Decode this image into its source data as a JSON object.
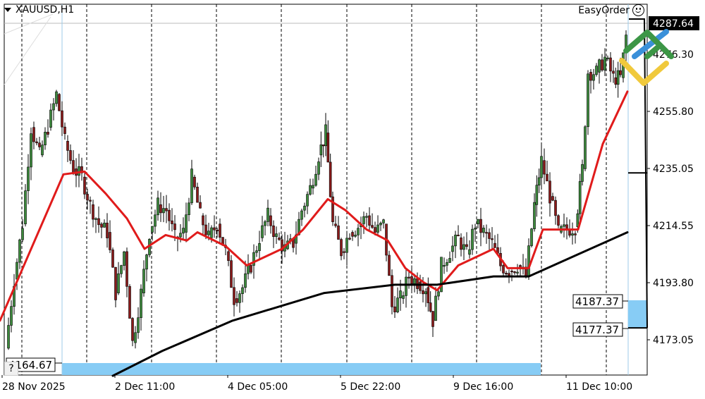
{
  "header": {
    "symbol": "XAUUSD,H1",
    "plugin": "EasyOrder"
  },
  "help_button": "?",
  "price_labels": {
    "current": "4287.64",
    "level_upper": "4187.37",
    "level_lower": "4177.37",
    "level_left": "4164.67"
  },
  "colors": {
    "bull": "#3c8a3c",
    "bear": "#8b1a1a",
    "ma_fast": "#e01b1b",
    "ma_slow": "#000000",
    "zone": "#87ccf5",
    "grid": "#000000"
  },
  "chart_data": {
    "type": "candlestick",
    "title": "XAUUSD,H1",
    "xlabel": "",
    "ylabel": "",
    "x_tick_labels": [
      "28 Nov 2025",
      "2 Dec 11:00",
      "4 Dec 05:00",
      "5 Dec 22:00",
      "9 Dec 16:00",
      "11 Dec 10:00"
    ],
    "y_tick_labels": [
      "4276.30",
      "4255.80",
      "4235.05",
      "4214.55",
      "4193.80",
      "4173.05"
    ],
    "ylim": [
      4160,
      4292
    ],
    "grid": "vertical dashed",
    "current_price": 4287.64,
    "annotations": [
      "4187.37",
      "4177.37",
      "4164.67"
    ],
    "series": [
      {
        "name": "MA fast (red)",
        "points_approx": [
          [
            0,
            4180
          ],
          [
            90,
            4233
          ],
          [
            120,
            4234
          ],
          [
            150,
            4226
          ],
          [
            180,
            4217
          ],
          [
            205,
            4206
          ],
          [
            235,
            4211
          ],
          [
            265,
            4209
          ],
          [
            280,
            4212
          ],
          [
            320,
            4207
          ],
          [
            350,
            4200
          ],
          [
            400,
            4206
          ],
          [
            430,
            4213
          ],
          [
            465,
            4224
          ],
          [
            490,
            4220
          ],
          [
            520,
            4213
          ],
          [
            550,
            4209
          ],
          [
            575,
            4199
          ],
          [
            600,
            4194
          ],
          [
            620,
            4191
          ],
          [
            650,
            4200
          ],
          [
            700,
            4206
          ],
          [
            720,
            4199
          ],
          [
            750,
            4199
          ],
          [
            770,
            4213
          ],
          [
            820,
            4213
          ],
          [
            855,
            4244
          ],
          [
            890,
            4263
          ]
        ]
      },
      {
        "name": "MA slow (black)",
        "points_approx": [
          [
            160,
            4160
          ],
          [
            230,
            4169
          ],
          [
            330,
            4180
          ],
          [
            460,
            4190
          ],
          [
            560,
            4193
          ],
          [
            620,
            4193
          ],
          [
            700,
            4196
          ],
          [
            750,
            4196
          ],
          [
            820,
            4204
          ],
          [
            890,
            4212
          ]
        ]
      }
    ]
  }
}
